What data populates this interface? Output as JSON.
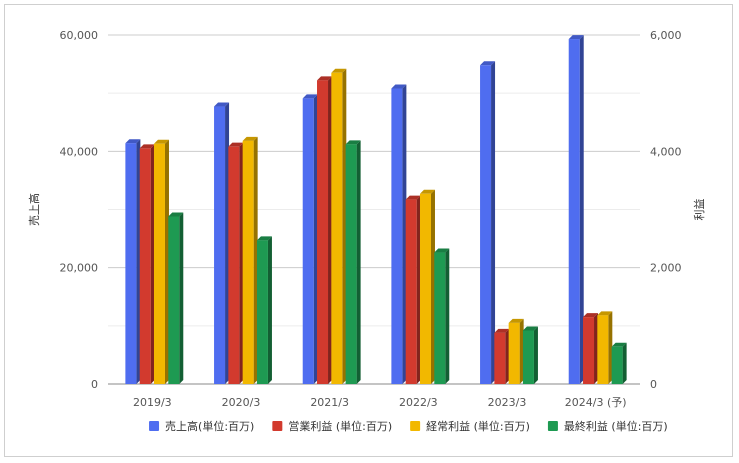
{
  "chart_data": {
    "type": "bar",
    "categories": [
      "2019/3",
      "2020/3",
      "2021/3",
      "2022/3",
      "2023/3",
      "2024/3 (予)"
    ],
    "left_axis": {
      "label": "売上高",
      "range": [
        0,
        60000
      ],
      "ticks": [
        "0",
        "20,000",
        "40,000",
        "60,000"
      ],
      "tick_values": [
        0,
        20000,
        40000,
        60000
      ]
    },
    "right_axis": {
      "label": "利益",
      "range": [
        0,
        6000
      ],
      "ticks": [
        "0",
        "2,000",
        "4,000",
        "6,000"
      ],
      "tick_values": [
        0,
        2000,
        4000,
        6000
      ]
    },
    "series": [
      {
        "name": "売上高(単位:百万)",
        "axis": "left",
        "color": "#4f6df0",
        "values": [
          41400,
          47700,
          49100,
          50800,
          54800,
          59300
        ]
      },
      {
        "name": "営業利益 (単位:百万)",
        "axis": "right",
        "color": "#d23a2e",
        "values": [
          4050,
          4080,
          5220,
          3170,
          880,
          1150
        ]
      },
      {
        "name": "経常利益 (単位:百万)",
        "axis": "right",
        "color": "#f2b800",
        "values": [
          4130,
          4180,
          5350,
          3270,
          1050,
          1180
        ]
      },
      {
        "name": "最終利益 (単位:百万)",
        "axis": "right",
        "color": "#1e9a52",
        "values": [
          2880,
          2470,
          4120,
          2260,
          920,
          640
        ]
      }
    ],
    "grid": true,
    "legend_position": "bottom"
  }
}
